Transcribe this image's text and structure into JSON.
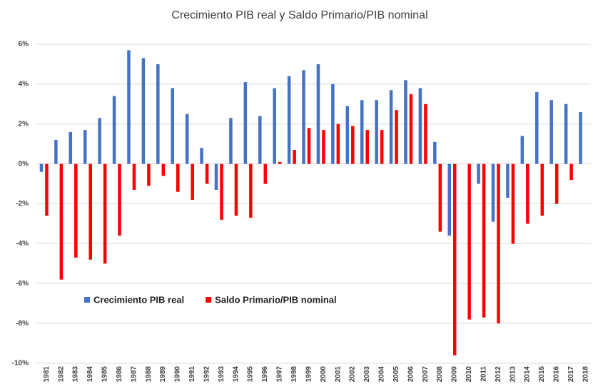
{
  "chart_data": {
    "type": "bar",
    "title": "Crecimiento PIB real y Saldo Primario/PIB nominal",
    "categories": [
      "1981",
      "1982",
      "1983",
      "1984",
      "1985",
      "1986",
      "1987",
      "1988",
      "1989",
      "1990",
      "1991",
      "1992",
      "1993",
      "1994",
      "1995",
      "1996",
      "1997",
      "1998",
      "1999",
      "2000",
      "2001",
      "2002",
      "2003",
      "2004",
      "2005",
      "2006",
      "2007",
      "2008",
      "2009",
      "2010",
      "2011",
      "2012",
      "2013",
      "2014",
      "2015",
      "2016",
      "2017",
      "2018"
    ],
    "series": [
      {
        "name": "Crecimiento PIB real",
        "color": "#4472c4",
        "values": [
          -0.4,
          1.2,
          1.6,
          1.7,
          2.3,
          3.4,
          5.7,
          5.3,
          5.0,
          3.8,
          2.5,
          0.8,
          -1.3,
          2.3,
          4.1,
          2.4,
          3.8,
          4.4,
          4.7,
          5.0,
          4.0,
          2.9,
          3.2,
          3.2,
          3.7,
          4.2,
          3.8,
          1.1,
          -3.6,
          0.0,
          -1.0,
          -2.9,
          -1.7,
          1.4,
          3.6,
          3.2,
          3.0,
          2.6
        ]
      },
      {
        "name": "Saldo Primario/PIB nominal",
        "color": "#ff0000",
        "values": [
          -2.6,
          -5.8,
          -4.7,
          -4.8,
          -5.0,
          -3.6,
          -1.3,
          -1.1,
          -0.6,
          -1.4,
          -1.8,
          -1.0,
          -2.8,
          -2.6,
          -2.7,
          -1.0,
          0.1,
          0.7,
          1.8,
          1.7,
          2.0,
          1.9,
          1.7,
          1.7,
          2.7,
          3.5,
          3.0,
          -3.4,
          -9.6,
          -7.8,
          -7.7,
          -8.0,
          -4.0,
          -3.0,
          -2.6,
          -2.0,
          -0.8,
          null
        ]
      }
    ],
    "ylim": [
      -10,
      6
    ],
    "yticks": [
      {
        "value": -10,
        "label": "-10%"
      },
      {
        "value": -8,
        "label": "-8%"
      },
      {
        "value": -6,
        "label": "-6%"
      },
      {
        "value": -4,
        "label": "-4%"
      },
      {
        "value": -2,
        "label": "-2%"
      },
      {
        "value": 0,
        "label": "0%"
      },
      {
        "value": 2,
        "label": "2%"
      },
      {
        "value": 4,
        "label": "4%"
      },
      {
        "value": 6,
        "label": "6%"
      }
    ],
    "grid": true
  }
}
